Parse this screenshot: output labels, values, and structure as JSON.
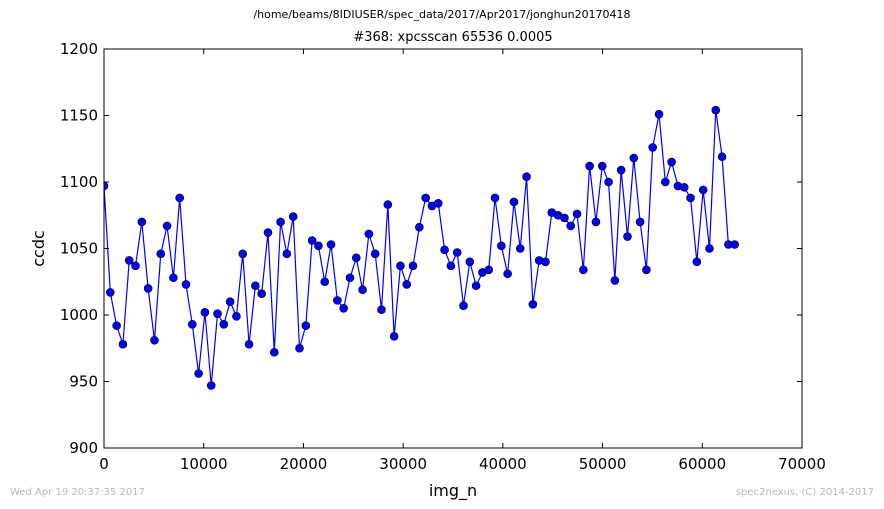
{
  "figure": {
    "source_path": "/home/beams/8IDIUSER/spec_data/2017/Apr2017/jonghun20170418",
    "timestamp": "Wed Apr 19 20:37:35 2017",
    "credit": "spec2nexus, (C) 2014-2017"
  },
  "colors": {
    "line": "#0000ff",
    "marker_fill": "#0000ff",
    "marker_edge": "#000000",
    "axes": "#000000",
    "footer_text": "#b8b8b8"
  },
  "chart_data": {
    "type": "line",
    "title": "#368: xpcsscan 65536 0.0005",
    "xlabel": "img_n",
    "ylabel": "ccdc",
    "xlim": [
      0,
      70000
    ],
    "ylim": [
      900,
      1200
    ],
    "xticks": [
      0,
      10000,
      20000,
      30000,
      40000,
      50000,
      60000,
      70000
    ],
    "yticks": [
      900,
      950,
      1000,
      1050,
      1100,
      1150,
      1200
    ],
    "grid": false,
    "legend": "none",
    "markers": "circle",
    "x_start": 0,
    "x_step": 632.5,
    "series": [
      {
        "values": [
          1097,
          1017,
          992,
          978,
          1041,
          1037,
          1070,
          1020,
          981,
          1046,
          1067,
          1028,
          1088,
          1023,
          993,
          956,
          1002,
          947,
          1001,
          993,
          1010,
          999,
          1046,
          978,
          1022,
          1016,
          1062,
          972,
          1070,
          1046,
          1074,
          975,
          992,
          1056,
          1052,
          1025,
          1053,
          1011,
          1005,
          1028,
          1043,
          1019,
          1061,
          1046,
          1004,
          1083,
          984,
          1037,
          1023,
          1037,
          1066,
          1088,
          1082,
          1084,
          1049,
          1037,
          1047,
          1007,
          1040,
          1022,
          1032,
          1034,
          1088,
          1052,
          1031,
          1085,
          1050,
          1104,
          1008,
          1041,
          1040,
          1077,
          1075,
          1073,
          1067,
          1076,
          1034,
          1112,
          1070,
          1112,
          1100,
          1026,
          1109,
          1059,
          1118,
          1070,
          1034,
          1126,
          1151,
          1100,
          1115,
          1097,
          1096,
          1088,
          1040,
          1094,
          1050,
          1154,
          1119,
          1053,
          1053
        ]
      }
    ]
  }
}
